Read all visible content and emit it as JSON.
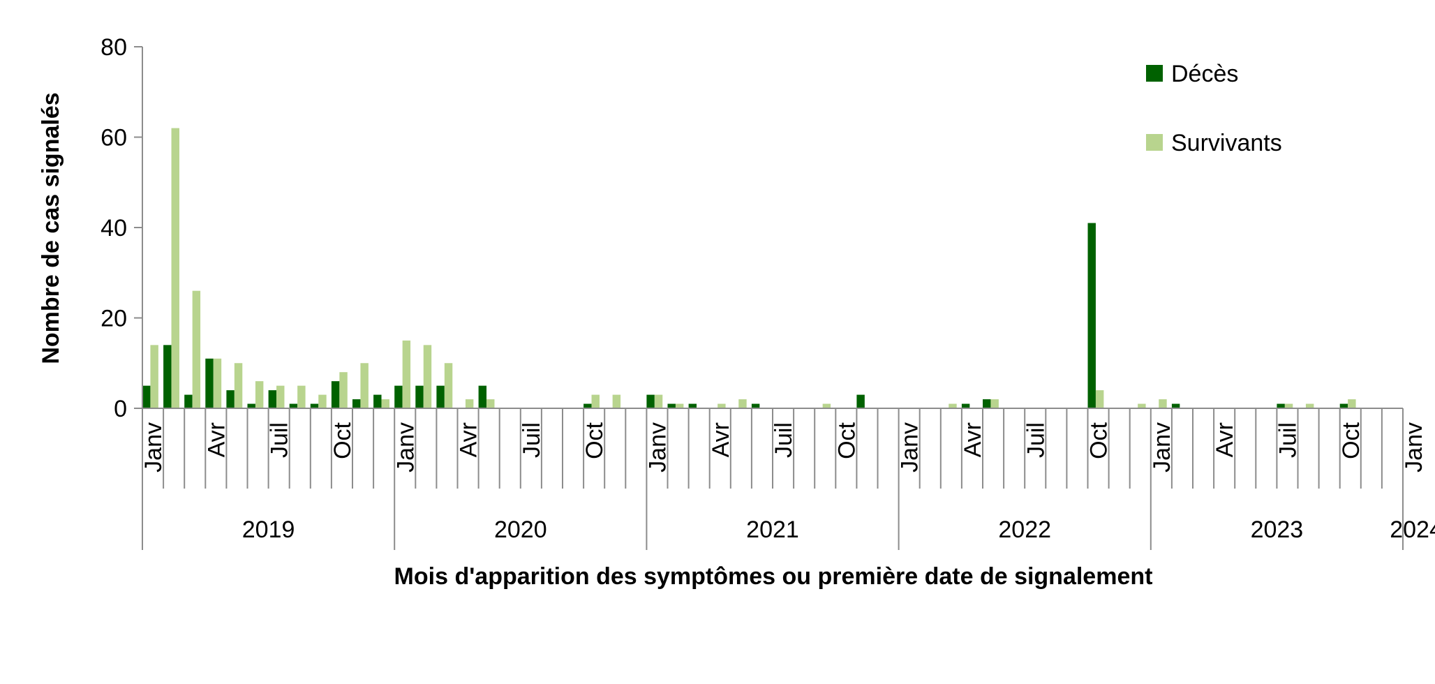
{
  "chart_data": {
    "type": "bar",
    "title": "",
    "xlabel": "Mois d'apparition des symptômes ou première date de signalement",
    "ylabel": "Nombre de cas signalés",
    "ylim": [
      0,
      80
    ],
    "yticks": [
      0,
      20,
      40,
      60,
      80
    ],
    "grid": false,
    "legend_position": "top-right",
    "month_tick_labels": [
      "Janv",
      "Avr",
      "Juil",
      "Oct"
    ],
    "year_labels": [
      "2019",
      "2020",
      "2021",
      "2022",
      "2023",
      "2024"
    ],
    "categories": [
      "2019-01",
      "2019-02",
      "2019-03",
      "2019-04",
      "2019-05",
      "2019-06",
      "2019-07",
      "2019-08",
      "2019-09",
      "2019-10",
      "2019-11",
      "2019-12",
      "2020-01",
      "2020-02",
      "2020-03",
      "2020-04",
      "2020-05",
      "2020-06",
      "2020-07",
      "2020-08",
      "2020-09",
      "2020-10",
      "2020-11",
      "2020-12",
      "2021-01",
      "2021-02",
      "2021-03",
      "2021-04",
      "2021-05",
      "2021-06",
      "2021-07",
      "2021-08",
      "2021-09",
      "2021-10",
      "2021-11",
      "2021-12",
      "2022-01",
      "2022-02",
      "2022-03",
      "2022-04",
      "2022-05",
      "2022-06",
      "2022-07",
      "2022-08",
      "2022-09",
      "2022-10",
      "2022-11",
      "2022-12",
      "2023-01",
      "2023-02",
      "2023-03",
      "2023-04",
      "2023-05",
      "2023-06",
      "2023-07",
      "2023-08",
      "2023-09",
      "2023-10",
      "2023-11",
      "2023-12",
      "2024-01"
    ],
    "series": [
      {
        "name": "Décès",
        "color": "#006100",
        "values": [
          5,
          14,
          3,
          11,
          4,
          1,
          4,
          1,
          1,
          6,
          2,
          3,
          5,
          5,
          5,
          0,
          5,
          0,
          0,
          0,
          0,
          1,
          0,
          0,
          3,
          1,
          1,
          0,
          0,
          1,
          0,
          0,
          0,
          0,
          3,
          0,
          0,
          0,
          0,
          1,
          2,
          0,
          0,
          0,
          0,
          41,
          0,
          0,
          0,
          1,
          0,
          0,
          0,
          0,
          1,
          0,
          0,
          1,
          0,
          0,
          0
        ]
      },
      {
        "name": "Survivants",
        "color": "#b8d48e",
        "values": [
          14,
          62,
          26,
          11,
          10,
          6,
          5,
          5,
          3,
          8,
          10,
          2,
          15,
          14,
          10,
          2,
          2,
          0,
          0,
          0,
          0,
          3,
          3,
          0,
          3,
          1,
          0,
          1,
          2,
          0,
          0,
          0,
          1,
          0,
          0,
          0,
          0,
          0,
          1,
          0,
          2,
          0,
          0,
          0,
          0,
          4,
          0,
          1,
          2,
          0,
          0,
          0,
          0,
          0,
          1,
          1,
          0,
          2,
          0,
          0,
          0
        ]
      }
    ]
  }
}
